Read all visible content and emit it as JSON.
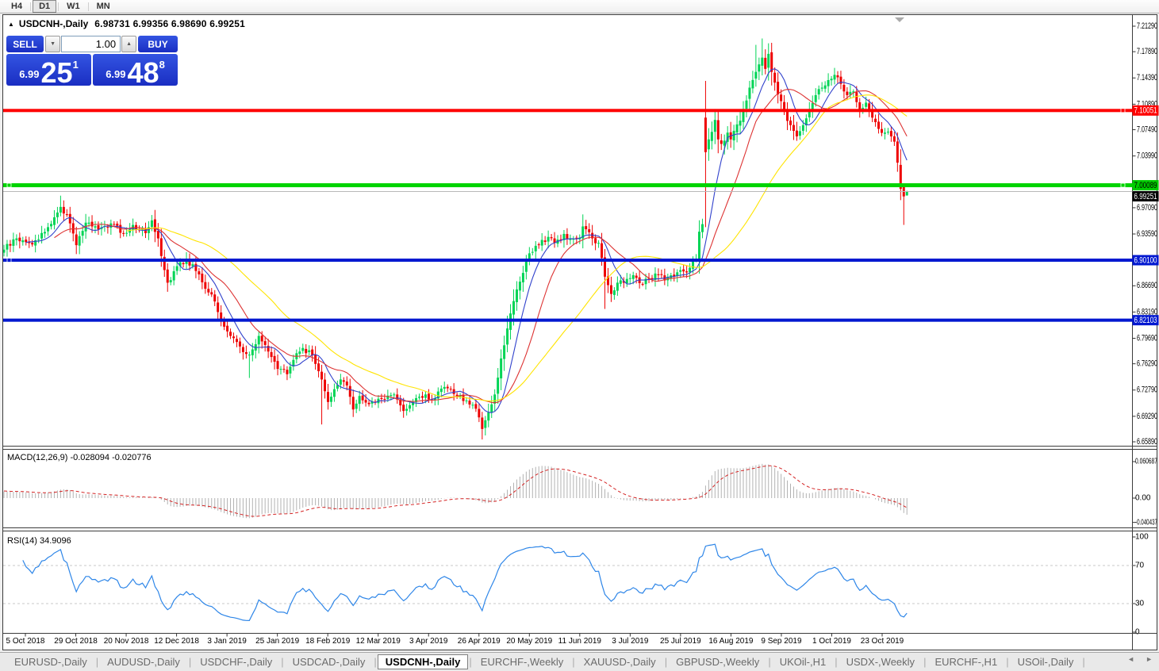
{
  "toolbar": {
    "timeframes": [
      {
        "label": "H4",
        "active": false
      },
      {
        "label": "D1",
        "active": true
      },
      {
        "label": "W1",
        "active": false
      },
      {
        "label": "MN",
        "active": false
      }
    ]
  },
  "chart_title": {
    "collapse_icon": "▲",
    "symbol": "USDCNH-,Daily",
    "ohlc": "6.98731 6.99356 6.98690 6.99251"
  },
  "trade_panel": {
    "sell_label": "SELL",
    "buy_label": "BUY",
    "volume": "1.00",
    "spin_down_icon": "▼",
    "spin_up_icon": "▲",
    "sell_price": {
      "prefix": "6.99",
      "big": "25",
      "sup": "1"
    },
    "buy_price": {
      "prefix": "6.99",
      "big": "48",
      "sup": "8"
    }
  },
  "macd_panel": {
    "label": "MACD(12,26,9) -0.028094 -0.020776",
    "axis": [
      {
        "value": 0.060687,
        "label": "0.060687"
      },
      {
        "value": 0,
        "label": "0.00"
      },
      {
        "value": -0.040437,
        "label": "-0.040437"
      }
    ]
  },
  "rsi_panel": {
    "label": "RSI(14) 34.9096",
    "axis": [
      {
        "value": 100,
        "label": "100"
      },
      {
        "value": 70,
        "label": "70"
      },
      {
        "value": 30,
        "label": "30"
      },
      {
        "value": 0,
        "label": "0"
      }
    ]
  },
  "price_axis": {
    "ticks": [
      {
        "price": 7.2129,
        "label": "7.21290"
      },
      {
        "price": 7.1789,
        "label": "7.17890"
      },
      {
        "price": 7.1439,
        "label": "7.14390"
      },
      {
        "price": 7.1089,
        "label": "7.10890"
      },
      {
        "price": 7.0749,
        "label": "7.07490"
      },
      {
        "price": 7.0399,
        "label": "7.03990"
      },
      {
        "price": 6.9709,
        "label": "6.97090"
      },
      {
        "price": 6.9359,
        "label": "6.93590"
      },
      {
        "price": 6.8669,
        "label": "6.86690"
      },
      {
        "price": 6.8319,
        "label": "6.83190"
      },
      {
        "price": 6.7969,
        "label": "6.79690"
      },
      {
        "price": 6.7629,
        "label": "6.76290"
      },
      {
        "price": 6.7279,
        "label": "6.72790"
      },
      {
        "price": 6.6929,
        "label": "6.69290"
      },
      {
        "price": 6.6589,
        "label": "6.65890"
      }
    ],
    "badges": [
      {
        "price": 7.10051,
        "label": "7.10051",
        "bg": "#fe0000",
        "fg": "#ffffff",
        "dy": 0
      },
      {
        "price": 7.00089,
        "label": "7.00089",
        "bg": "#00cc00",
        "fg": "#000000",
        "dy": 0
      },
      {
        "price": 6.99251,
        "label": "6.99251",
        "bg": "#000000",
        "fg": "#ffffff",
        "dy": 6
      },
      {
        "price": 6.901,
        "label": "6.90100",
        "bg": "#0018d0",
        "fg": "#ffffff",
        "dy": 0
      },
      {
        "price": 6.82103,
        "label": "6.82103",
        "bg": "#0018d0",
        "fg": "#ffffff",
        "dy": 0
      }
    ]
  },
  "tab_bar": {
    "separator": "|",
    "scroll_left": "◄",
    "scroll_right": "►",
    "tabs": [
      {
        "label": "EURUSD-,Daily",
        "active": false
      },
      {
        "label": "AUDUSD-,Daily",
        "active": false
      },
      {
        "label": "USDCHF-,Daily",
        "active": false
      },
      {
        "label": "USDCAD-,Daily",
        "active": false
      },
      {
        "label": "USDCNH-,Daily",
        "active": true
      },
      {
        "label": "EURCHF-,Weekly",
        "active": false
      },
      {
        "label": "XAUUSD-,Daily",
        "active": false
      },
      {
        "label": "GBPUSD-,Weekly",
        "active": false
      },
      {
        "label": "UKOil-,H1",
        "active": false
      },
      {
        "label": "USDX-,Weekly",
        "active": false
      },
      {
        "label": "EURCHF-,H1",
        "active": false
      },
      {
        "label": "USOil-,Daily",
        "active": false
      }
    ]
  },
  "chart_data": {
    "type": "candlestick",
    "symbol": "USDCNH",
    "timeframe": "Daily",
    "current_ohlc": {
      "open": 6.98731,
      "high": 6.99356,
      "low": 6.9869,
      "close": 6.99251
    },
    "ylim": [
      6.6547,
      7.2277
    ],
    "x_tick_labels": [
      "5 Oct 2018",
      "29 Oct 2018",
      "20 Nov 2018",
      "12 Dec 2018",
      "3 Jan 2019",
      "25 Jan 2019",
      "18 Feb 2019",
      "12 Mar 2019",
      "3 Apr 2019",
      "26 Apr 2019",
      "20 May 2019",
      "11 Jun 2019",
      "3 Jul 2019",
      "25 Jul 2019",
      "16 Aug 2019",
      "9 Sep 2019",
      "1 Oct 2019",
      "23 Oct 2019"
    ],
    "horizontal_lines": [
      {
        "price": 7.10051,
        "color": "#fe0000",
        "thickness": 4,
        "handles": [
          "right"
        ]
      },
      {
        "price": 7.00089,
        "color": "#00d400",
        "thickness": 5,
        "handles": [
          "left",
          "right"
        ]
      },
      {
        "price": 6.901,
        "color": "#0018d0",
        "thickness": 4,
        "handles": [
          "left"
        ]
      },
      {
        "price": 6.82103,
        "color": "#0018d0",
        "thickness": 4,
        "handles": []
      }
    ],
    "bid_line": {
      "price": 6.99251,
      "color": "#b8b8b8"
    },
    "candle_colors": {
      "bull": "#00d455",
      "bear": "#ee0000"
    },
    "close_anchors": [
      [
        0,
        6.915
      ],
      [
        4,
        6.93
      ],
      [
        9,
        6.922
      ],
      [
        14,
        6.945
      ],
      [
        18,
        6.972
      ],
      [
        21,
        6.95
      ],
      [
        23,
        6.921
      ],
      [
        26,
        6.951
      ],
      [
        30,
        6.942
      ],
      [
        34,
        6.95
      ],
      [
        38,
        6.936
      ],
      [
        41,
        6.948
      ],
      [
        45,
        6.937
      ],
      [
        47,
        6.954
      ],
      [
        49,
        6.93
      ],
      [
        52,
        6.871
      ],
      [
        55,
        6.893
      ],
      [
        58,
        6.902
      ],
      [
        62,
        6.882
      ],
      [
        65,
        6.858
      ],
      [
        67,
        6.846
      ],
      [
        69,
        6.82
      ],
      [
        72,
        6.8
      ],
      [
        74,
        6.792
      ],
      [
        77,
        6.776
      ],
      [
        79,
        6.782
      ],
      [
        81,
        6.8
      ],
      [
        83,
        6.788
      ],
      [
        87,
        6.756
      ],
      [
        90,
        6.749
      ],
      [
        93,
        6.777
      ],
      [
        95,
        6.784
      ],
      [
        98,
        6.774
      ],
      [
        101,
        6.742
      ],
      [
        103,
        6.712
      ],
      [
        105,
        6.729
      ],
      [
        107,
        6.742
      ],
      [
        109,
        6.734
      ],
      [
        111,
        6.702
      ],
      [
        113,
        6.72
      ],
      [
        116,
        6.709
      ],
      [
        120,
        6.716
      ],
      [
        124,
        6.722
      ],
      [
        127,
        6.7
      ],
      [
        130,
        6.712
      ],
      [
        134,
        6.722
      ],
      [
        136,
        6.714
      ],
      [
        140,
        6.732
      ],
      [
        144,
        6.72
      ],
      [
        147,
        6.714
      ],
      [
        150,
        6.703
      ],
      [
        152,
        6.676
      ],
      [
        154,
        6.698
      ],
      [
        156,
        6.722
      ],
      [
        158,
        6.77
      ],
      [
        160,
        6.81
      ],
      [
        161,
        6.83
      ],
      [
        163,
        6.862
      ],
      [
        165,
        6.884
      ],
      [
        166,
        6.9
      ],
      [
        168,
        6.912
      ],
      [
        170,
        6.921
      ],
      [
        173,
        6.932
      ],
      [
        175,
        6.924
      ],
      [
        178,
        6.936
      ],
      [
        180,
        6.929
      ],
      [
        183,
        6.931
      ],
      [
        184,
        6.946
      ],
      [
        187,
        6.93
      ],
      [
        189,
        6.924
      ],
      [
        191,
        6.879
      ],
      [
        193,
        6.856
      ],
      [
        195,
        6.871
      ],
      [
        198,
        6.876
      ],
      [
        200,
        6.881
      ],
      [
        203,
        6.869
      ],
      [
        205,
        6.876
      ],
      [
        208,
        6.881
      ],
      [
        210,
        6.874
      ],
      [
        213,
        6.879
      ],
      [
        216,
        6.886
      ],
      [
        218,
        6.891
      ],
      [
        220,
        6.901
      ],
      [
        221,
        6.939
      ],
      [
        222,
        6.949
      ],
      [
        223,
        7.048
      ],
      [
        224,
        7.062
      ],
      [
        225,
        7.072
      ],
      [
        226,
        7.088
      ],
      [
        227,
        7.062
      ],
      [
        228,
        7.056
      ],
      [
        230,
        7.071
      ],
      [
        231,
        7.062
      ],
      [
        233,
        7.082
      ],
      [
        235,
        7.102
      ],
      [
        237,
        7.131
      ],
      [
        239,
        7.152
      ],
      [
        240,
        7.162
      ],
      [
        241,
        7.171
      ],
      [
        242,
        7.156
      ],
      [
        243,
        7.176
      ],
      [
        244,
        7.152
      ],
      [
        246,
        7.122
      ],
      [
        248,
        7.101
      ],
      [
        250,
        7.081
      ],
      [
        252,
        7.066
      ],
      [
        254,
        7.081
      ],
      [
        256,
        7.101
      ],
      [
        258,
        7.121
      ],
      [
        260,
        7.131
      ],
      [
        262,
        7.141
      ],
      [
        264,
        7.148
      ],
      [
        266,
        7.136
      ],
      [
        268,
        7.121
      ],
      [
        270,
        7.126
      ],
      [
        272,
        7.101
      ],
      [
        274,
        7.111
      ],
      [
        276,
        7.091
      ],
      [
        278,
        7.076
      ],
      [
        280,
        7.071
      ],
      [
        282,
        7.066
      ],
      [
        283,
        7.059
      ],
      [
        284,
        7.031
      ],
      [
        285,
        6.996
      ],
      [
        286,
        6.986
      ],
      [
        287,
        6.99251
      ]
    ],
    "candle_overrides": {
      "18": {
        "h": 6.987
      },
      "78": {
        "l": 6.744
      },
      "101": {
        "l": 6.682
      },
      "152": {
        "l": 6.662
      },
      "184": {
        "h": 6.962
      },
      "191": {
        "l": 6.836
      },
      "223": {
        "o": 7.091,
        "h": 7.1399,
        "l": 6.945,
        "c": 7.045
      },
      "239": {
        "h": 7.188
      },
      "241": {
        "h": 7.1965
      },
      "285": {
        "o": 7.028,
        "c": 6.996
      },
      "286": {
        "o": 6.999,
        "c": 6.986,
        "l": 6.948
      },
      "287": {
        "o": 6.98731,
        "h": 6.99356,
        "l": 6.9869,
        "c": 6.99251
      }
    },
    "moving_averages": [
      {
        "period": 8,
        "color": "#3142cc"
      },
      {
        "period": 17,
        "color": "#dd3333"
      },
      {
        "period": 40,
        "color": "#ffe400"
      }
    ],
    "macd": {
      "fast": 12,
      "slow": 26,
      "signal": 9,
      "main_value": -0.028094,
      "signal_value": -0.020776,
      "bar_color": "#b2b2b2",
      "signal_color": "#d42222",
      "range": [
        -0.040437,
        0.060687
      ]
    },
    "rsi": {
      "period": 14,
      "value": 34.9096,
      "color": "#2e86e8",
      "range": [
        0,
        100
      ],
      "levels": [
        70,
        30
      ],
      "level_color": "#c8c8c8"
    }
  }
}
